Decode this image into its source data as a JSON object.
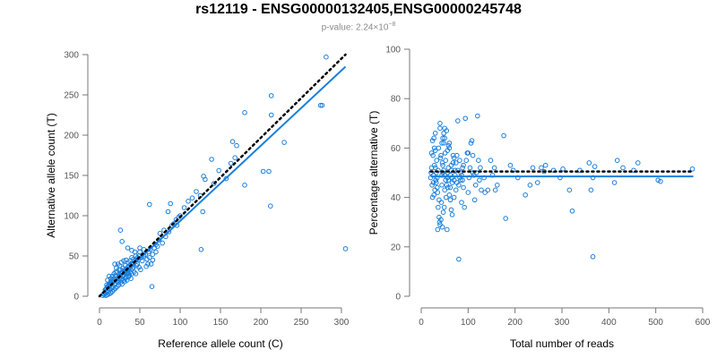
{
  "title": "rs12119 - ENSG00000132405,ENSG00000245748",
  "subtitle": {
    "prefix": "p-value: 2.24×10",
    "exponent": "−8"
  },
  "chart_data": [
    {
      "type": "scatter",
      "name": "allele-counts",
      "xlabel": "Reference allele count (C)",
      "ylabel": "Alternative allele count (T)",
      "xlim": [
        0,
        300
      ],
      "ylim": [
        0,
        300
      ],
      "xticks": [
        0,
        50,
        100,
        150,
        200,
        250,
        300
      ],
      "yticks": [
        0,
        50,
        100,
        150,
        200,
        250,
        300
      ],
      "fit_line": {
        "from": [
          0,
          0
        ],
        "to": [
          305,
          285
        ],
        "color": "#1a7fdc"
      },
      "reference_line": {
        "from": [
          0,
          0
        ],
        "to": [
          305,
          300
        ],
        "color": "#000000",
        "style": "dotted"
      },
      "points": [
        [
          281,
          297
        ],
        [
          274,
          237
        ],
        [
          276,
          237
        ],
        [
          213,
          249
        ],
        [
          213,
          225
        ],
        [
          180,
          228
        ],
        [
          229,
          191
        ],
        [
          305,
          59
        ],
        [
          210,
          155
        ],
        [
          203,
          155
        ],
        [
          212,
          112
        ],
        [
          180,
          138
        ],
        [
          165,
          192
        ],
        [
          139,
          170
        ],
        [
          129,
          149
        ],
        [
          131,
          145
        ],
        [
          100,
          100
        ],
        [
          85,
          105
        ],
        [
          88,
          115
        ],
        [
          62,
          114
        ],
        [
          126,
          58
        ],
        [
          128,
          105
        ],
        [
          125,
          125
        ],
        [
          120,
          130
        ],
        [
          142,
          140
        ],
        [
          148,
          156
        ],
        [
          163,
          165
        ],
        [
          168,
          172
        ],
        [
          170,
          187
        ],
        [
          157,
          146
        ],
        [
          98,
          98
        ],
        [
          110,
          118
        ],
        [
          115,
          122
        ],
        [
          105,
          110
        ],
        [
          95,
          95
        ],
        [
          90,
          88
        ],
        [
          80,
          82
        ],
        [
          75,
          78
        ],
        [
          72,
          62
        ],
        [
          64,
          40
        ],
        [
          68,
          60
        ],
        [
          65,
          12
        ],
        [
          58,
          37
        ],
        [
          55,
          58
        ],
        [
          52,
          48
        ],
        [
          50,
          60
        ],
        [
          48,
          45
        ],
        [
          46,
          38
        ],
        [
          44,
          55
        ],
        [
          42,
          40
        ],
        [
          40,
          48
        ],
        [
          38,
          35
        ],
        [
          36,
          42
        ],
        [
          34,
          28
        ],
        [
          32,
          38
        ],
        [
          30,
          32
        ],
        [
          28,
          30
        ],
        [
          26,
          26
        ],
        [
          25,
          22
        ],
        [
          24,
          33
        ],
        [
          22,
          18
        ],
        [
          20,
          25
        ],
        [
          19,
          15
        ],
        [
          18,
          22
        ],
        [
          17,
          12
        ],
        [
          16,
          20
        ],
        [
          15,
          10
        ],
        [
          14,
          18
        ],
        [
          13,
          8
        ],
        [
          12,
          15
        ],
        [
          11,
          5
        ],
        [
          10,
          12
        ],
        [
          9,
          6
        ],
        [
          8,
          9
        ],
        [
          7,
          4
        ],
        [
          22,
          30
        ],
        [
          24,
          14
        ],
        [
          27,
          20
        ],
        [
          29,
          25
        ],
        [
          31,
          18
        ],
        [
          33,
          24
        ],
        [
          35,
          30
        ],
        [
          37,
          26
        ],
        [
          39,
          22
        ],
        [
          41,
          34
        ],
        [
          43,
          30
        ],
        [
          45,
          28
        ],
        [
          47,
          40
        ],
        [
          49,
          36
        ],
        [
          51,
          33
        ],
        [
          53,
          44
        ],
        [
          55,
          50
        ],
        [
          57,
          52
        ],
        [
          59,
          46
        ],
        [
          61,
          55
        ],
        [
          63,
          58
        ],
        [
          66,
          52
        ],
        [
          70,
          64
        ],
        [
          74,
          70
        ],
        [
          78,
          66
        ],
        [
          82,
          74
        ],
        [
          86,
          80
        ],
        [
          92,
          90
        ],
        [
          96,
          88
        ],
        [
          60,
          40
        ],
        [
          62,
          48
        ],
        [
          66,
          45
        ],
        [
          70,
          55
        ],
        [
          25,
          38
        ],
        [
          27,
          42
        ],
        [
          29,
          35
        ],
        [
          20,
          30
        ],
        [
          21,
          35
        ],
        [
          23,
          40
        ],
        [
          18,
          28
        ],
        [
          16,
          25
        ],
        [
          14,
          22
        ],
        [
          19,
          40
        ],
        [
          26,
          82
        ],
        [
          28,
          68
        ],
        [
          35,
          60
        ],
        [
          40,
          57
        ],
        [
          45,
          50
        ],
        [
          50,
          55
        ],
        [
          33,
          45
        ],
        [
          30,
          44
        ],
        [
          36,
          33
        ],
        [
          38,
          44
        ],
        [
          42,
          46
        ],
        [
          12,
          25
        ],
        [
          10,
          20
        ],
        [
          9,
          14
        ],
        [
          11,
          10
        ],
        [
          13,
          14
        ],
        [
          15,
          16
        ],
        [
          17,
          18
        ],
        [
          21,
          21
        ],
        [
          23,
          23
        ],
        [
          25,
          25
        ],
        [
          27,
          28
        ],
        [
          29,
          29
        ],
        [
          31,
          31
        ],
        [
          33,
          33
        ],
        [
          35,
          36
        ],
        [
          37,
          38
        ],
        [
          39,
          40
        ],
        [
          41,
          41
        ],
        [
          43,
          44
        ],
        [
          45,
          45
        ],
        [
          47,
          48
        ],
        [
          49,
          50
        ],
        [
          24,
          27
        ],
        [
          26,
          33
        ],
        [
          28,
          22
        ],
        [
          30,
          26
        ],
        [
          32,
          30
        ],
        [
          34,
          34
        ],
        [
          36,
          24
        ],
        [
          38,
          30
        ],
        [
          40,
          28
        ],
        [
          42,
          36
        ],
        [
          22,
          12
        ],
        [
          24,
          19
        ],
        [
          26,
          17
        ],
        [
          28,
          15
        ],
        [
          30,
          20
        ],
        [
          32,
          22
        ],
        [
          34,
          20
        ],
        [
          36,
          28
        ],
        [
          20,
          10
        ],
        [
          18,
          8
        ],
        [
          16,
          6
        ],
        [
          14,
          4
        ],
        [
          12,
          3
        ],
        [
          10,
          2
        ],
        [
          8,
          1
        ],
        [
          6,
          2
        ],
        [
          5,
          3
        ],
        [
          4,
          1
        ],
        [
          7,
          8
        ],
        [
          9,
          10
        ],
        [
          11,
          13
        ],
        [
          13,
          16
        ]
      ]
    },
    {
      "type": "scatter",
      "name": "percentage-alternative",
      "xlabel": "Total number of reads",
      "ylabel": "Percentage alternative (T)",
      "xlim": [
        0,
        600
      ],
      "ylim": [
        0,
        100
      ],
      "xticks": [
        0,
        100,
        200,
        300,
        400,
        500,
        600
      ],
      "yticks": [
        0,
        20,
        40,
        60,
        80,
        100
      ],
      "fit_line": {
        "from": [
          20,
          48.5
        ],
        "to": [
          580,
          48.5
        ],
        "color": "#1a7fdc"
      },
      "reference_line": {
        "from": [
          20,
          50.5
        ],
        "to": [
          580,
          50.5
        ],
        "color": "#000000",
        "style": "dotted"
      },
      "points": [
        [
          578,
          51.5
        ],
        [
          510,
          46.5
        ],
        [
          505,
          47
        ],
        [
          462,
          54
        ],
        [
          453,
          51
        ],
        [
          430,
          52
        ],
        [
          418,
          55
        ],
        [
          412,
          46
        ],
        [
          370,
          52.5
        ],
        [
          366,
          48
        ],
        [
          366,
          16
        ],
        [
          362,
          43
        ],
        [
          358,
          54
        ],
        [
          338,
          51
        ],
        [
          322,
          34.5
        ],
        [
          316,
          43
        ],
        [
          302,
          51.5
        ],
        [
          296,
          48
        ],
        [
          282,
          51
        ],
        [
          265,
          53
        ],
        [
          262,
          50.5
        ],
        [
          256,
          52
        ],
        [
          248,
          46
        ],
        [
          238,
          52
        ],
        [
          232,
          45
        ],
        [
          222,
          41
        ],
        [
          206,
          48
        ],
        [
          196,
          51
        ],
        [
          190,
          53
        ],
        [
          180,
          31.5
        ],
        [
          176,
          65
        ],
        [
          162,
          45
        ],
        [
          158,
          43
        ],
        [
          156,
          52
        ],
        [
          152,
          49
        ],
        [
          148,
          55
        ],
        [
          142,
          43
        ],
        [
          136,
          42
        ],
        [
          134,
          48
        ],
        [
          128,
          43
        ],
        [
          126,
          52
        ],
        [
          124,
          47
        ],
        [
          122,
          55
        ],
        [
          120,
          73
        ],
        [
          118,
          50
        ],
        [
          116,
          45
        ],
        [
          114,
          39
        ],
        [
          112,
          49
        ],
        [
          110,
          57
        ],
        [
          108,
          63
        ],
        [
          106,
          62
        ],
        [
          104,
          52
        ],
        [
          102,
          48
        ],
        [
          100,
          42
        ],
        [
          98,
          58
        ],
        [
          96,
          55
        ],
        [
          94,
          72
        ],
        [
          92,
          36
        ],
        [
          90,
          44
        ],
        [
          88,
          52
        ],
        [
          86,
          38
        ],
        [
          84,
          47
        ],
        [
          82,
          48
        ],
        [
          80,
          15
        ],
        [
          78,
          71
        ],
        [
          76,
          46
        ],
        [
          74,
          54
        ],
        [
          72,
          51
        ],
        [
          70,
          40
        ],
        [
          68,
          57
        ],
        [
          66,
          48
        ],
        [
          64,
          53
        ],
        [
          62,
          44
        ],
        [
          60,
          60
        ],
        [
          58,
          47
        ],
        [
          56,
          50
        ],
        [
          54,
          67
        ],
        [
          52,
          55
        ],
        [
          50,
          43
        ],
        [
          48,
          62
        ],
        [
          46,
          50
        ],
        [
          44,
          45
        ],
        [
          42,
          57
        ],
        [
          40,
          68
        ],
        [
          38,
          39
        ],
        [
          36,
          51
        ],
        [
          34,
          48
        ],
        [
          32,
          46
        ],
        [
          30,
          59
        ],
        [
          28,
          53
        ],
        [
          26,
          49
        ],
        [
          24,
          63
        ],
        [
          22,
          52
        ],
        [
          20,
          48
        ],
        [
          57,
          44
        ],
        [
          53,
          40
        ],
        [
          51,
          58
        ],
        [
          49,
          36
        ],
        [
          47,
          34
        ],
        [
          45,
          54
        ],
        [
          43,
          38
        ],
        [
          41,
          56
        ],
        [
          39,
          30
        ],
        [
          37,
          60
        ],
        [
          35,
          42
        ],
        [
          33,
          55
        ],
        [
          31,
          47
        ],
        [
          29,
          43
        ],
        [
          27,
          41
        ],
        [
          25,
          57
        ],
        [
          23,
          45
        ],
        [
          21,
          50
        ],
        [
          55,
          27
        ],
        [
          45,
          28
        ],
        [
          35,
          27
        ],
        [
          30,
          66
        ],
        [
          40,
          70
        ],
        [
          50,
          64
        ],
        [
          60,
          62
        ],
        [
          70,
          56
        ],
        [
          80,
          45
        ],
        [
          90,
          53
        ],
        [
          100,
          58
        ],
        [
          110,
          50
        ],
        [
          56,
          48
        ],
        [
          58,
          52
        ],
        [
          62,
          49
        ],
        [
          64,
          51
        ],
        [
          66,
          46
        ],
        [
          68,
          54
        ],
        [
          70,
          47
        ],
        [
          72,
          49
        ],
        [
          74,
          43
        ],
        [
          76,
          57
        ],
        [
          78,
          51
        ],
        [
          82,
          55
        ],
        [
          84,
          50
        ],
        [
          86,
          49
        ],
        [
          88,
          47
        ],
        [
          44,
          49
        ],
        [
          46,
          53
        ],
        [
          48,
          51
        ],
        [
          50,
          49
        ],
        [
          52,
          47
        ],
        [
          54,
          45
        ],
        [
          56,
          59
        ],
        [
          58,
          61
        ],
        [
          60,
          41
        ],
        [
          62,
          39
        ],
        [
          64,
          35
        ],
        [
          66,
          33
        ],
        [
          36,
          36
        ],
        [
          38,
          32
        ],
        [
          40,
          29
        ],
        [
          42,
          31
        ],
        [
          44,
          62
        ],
        [
          46,
          64
        ],
        [
          48,
          66
        ],
        [
          50,
          68
        ],
        [
          30,
          52
        ],
        [
          32,
          50
        ],
        [
          34,
          44
        ],
        [
          26,
          46
        ],
        [
          28,
          60
        ],
        [
          24,
          40
        ],
        [
          22,
          58
        ],
        [
          27,
          64
        ]
      ]
    }
  ]
}
